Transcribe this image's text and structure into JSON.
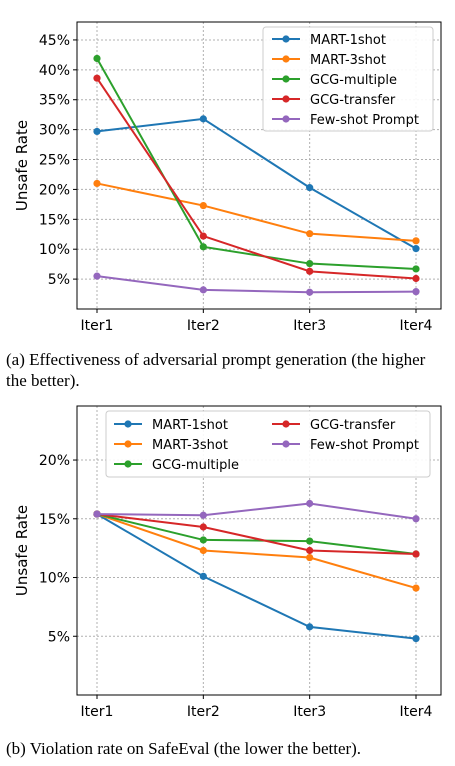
{
  "chart_data": [
    {
      "type": "line",
      "categories": [
        "Iter1",
        "Iter2",
        "Iter3",
        "Iter4"
      ],
      "ylabel": "Unsafe Rate",
      "xlabel": "",
      "ylim": [
        0,
        48
      ],
      "yticks": [
        5,
        10,
        15,
        20,
        25,
        30,
        35,
        40,
        45
      ],
      "ytick_labels": [
        "5%",
        "10%",
        "15%",
        "20%",
        "25%",
        "30%",
        "35%",
        "40%",
        "45%"
      ],
      "grid": true,
      "legend_position": "top-right",
      "legend_columns": 1,
      "series": [
        {
          "name": "MART-1shot",
          "color": "#1f77b4",
          "values": [
            29.7,
            31.8,
            20.3,
            10.1
          ]
        },
        {
          "name": "MART-3shot",
          "color": "#ff7f0e",
          "values": [
            21.0,
            17.3,
            12.6,
            11.4
          ]
        },
        {
          "name": "GCG-multiple",
          "color": "#2ca02c",
          "values": [
            41.9,
            10.4,
            7.6,
            6.7
          ]
        },
        {
          "name": "GCG-transfer",
          "color": "#d62728",
          "values": [
            38.6,
            12.2,
            6.3,
            5.1
          ]
        },
        {
          "name": "Few-shot Prompt",
          "color": "#9467bd",
          "values": [
            5.5,
            3.2,
            2.8,
            2.9
          ]
        }
      ],
      "caption": "(a) Effectiveness of adversarial prompt generation (the higher the better)."
    },
    {
      "type": "line",
      "categories": [
        "Iter1",
        "Iter2",
        "Iter3",
        "Iter4"
      ],
      "ylabel": "Unsafe Rate",
      "xlabel": "",
      "ylim": [
        0,
        24.6
      ],
      "yticks": [
        5,
        10,
        15,
        20
      ],
      "ytick_labels": [
        "5%",
        "10%",
        "15%",
        "20%"
      ],
      "grid": true,
      "legend_position": "top",
      "legend_columns": 2,
      "series": [
        {
          "name": "MART-1shot",
          "color": "#1f77b4",
          "values": [
            15.4,
            10.1,
            5.8,
            4.8
          ]
        },
        {
          "name": "MART-3shot",
          "color": "#ff7f0e",
          "values": [
            15.4,
            12.3,
            11.7,
            9.1
          ]
        },
        {
          "name": "GCG-multiple",
          "color": "#2ca02c",
          "values": [
            15.4,
            13.2,
            13.1,
            12.0
          ]
        },
        {
          "name": "GCG-transfer",
          "color": "#d62728",
          "values": [
            15.4,
            14.3,
            12.3,
            12.0
          ]
        },
        {
          "name": "Few-shot Prompt",
          "color": "#9467bd",
          "values": [
            15.4,
            15.3,
            16.3,
            15.0
          ]
        }
      ],
      "caption": "(b) Violation rate on SafeEval (the lower the better)."
    }
  ]
}
